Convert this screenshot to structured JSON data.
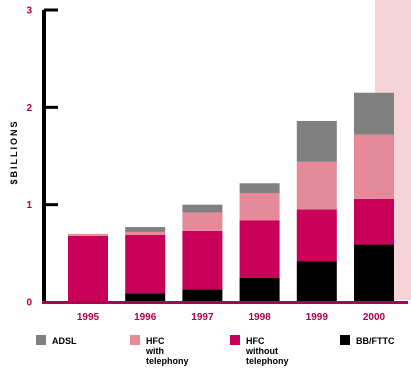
{
  "chart_data": {
    "type": "bar",
    "stacked": true,
    "ylabel": "$BILLIONS",
    "ylim": [
      0,
      3
    ],
    "yticks": [
      "0",
      "1",
      "2",
      "3"
    ],
    "categories": [
      "1995",
      "1996",
      "1997",
      "1998",
      "1999",
      "2000"
    ],
    "highlighted_category": "2000",
    "grid": false,
    "legend_position": "bottom",
    "series": [
      {
        "name": "BB/FTTC",
        "legend_lines": [
          "BB/FTTC"
        ],
        "color": "#000000",
        "values": [
          0.0,
          0.09,
          0.13,
          0.25,
          0.42,
          0.59
        ]
      },
      {
        "name": "HFC without telephony",
        "legend_lines": [
          "HFC",
          "without",
          "telephony"
        ],
        "color": "#c8005a",
        "values": [
          0.68,
          0.6,
          0.6,
          0.59,
          0.53,
          0.47
        ]
      },
      {
        "name": "HFC with telephony",
        "legend_lines": [
          "HFC",
          "with",
          "telephony"
        ],
        "color": "#e48a98",
        "values": [
          0.02,
          0.03,
          0.19,
          0.28,
          0.49,
          0.66
        ]
      },
      {
        "name": "ADSL",
        "legend_lines": [
          "ADSL"
        ],
        "color": "#808080",
        "values": [
          0.0,
          0.05,
          0.08,
          0.1,
          0.42,
          0.43
        ]
      }
    ],
    "legend_order": [
      "ADSL",
      "HFC with telephony",
      "HFC without telephony",
      "BB/FTTC"
    ],
    "highlight_color": "#f6d3d6"
  }
}
